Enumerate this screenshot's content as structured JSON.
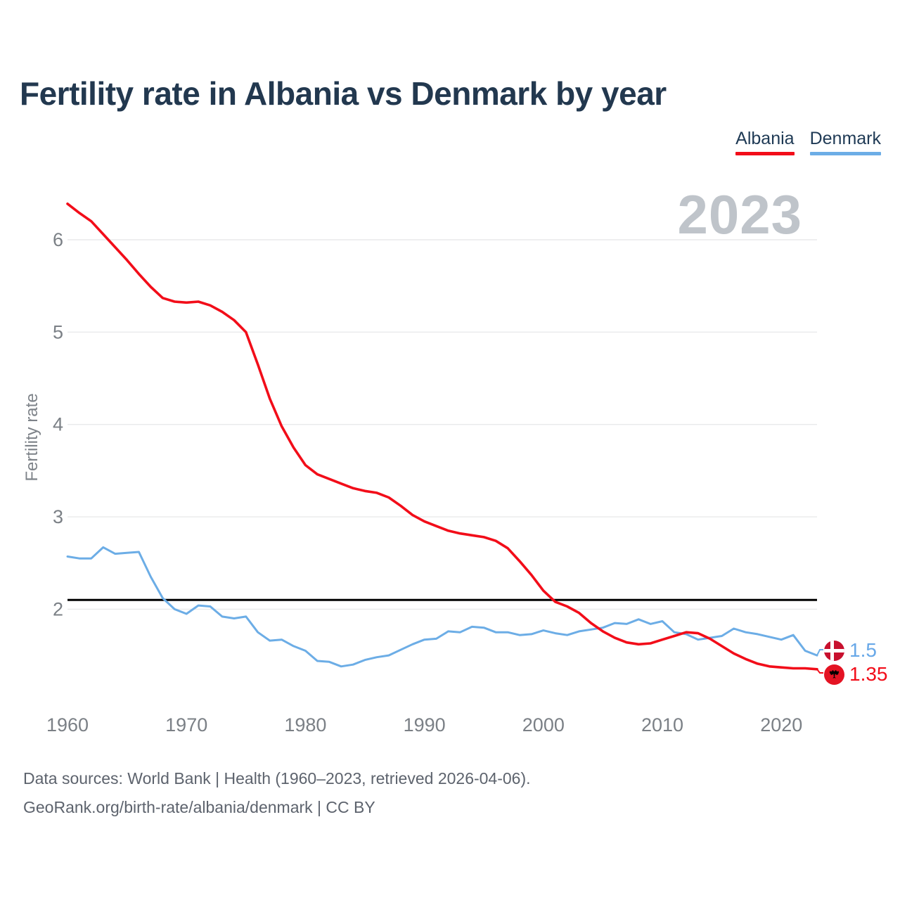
{
  "watermark": "2023",
  "chart_data": {
    "type": "line",
    "title": "Fertility rate in Albania vs Denmark by year",
    "xlabel": "",
    "ylabel": "Fertility rate",
    "x_start": 1960,
    "x_end": 2023,
    "x_tick_labels": [
      "1960",
      "1970",
      "1980",
      "1990",
      "2000",
      "2010",
      "2020"
    ],
    "y_tick_labels": [
      "2",
      "3",
      "4",
      "5",
      "6"
    ],
    "ylim": [
      1.25,
      6.55
    ],
    "grid": "horizontal",
    "legend_position": "top-right",
    "reference_line": {
      "value": 2.1,
      "color": "#000000"
    },
    "series": [
      {
        "name": "Albania",
        "color": "#f20d19",
        "end_label": "1.35",
        "flag": "albania-flag",
        "values": [
          6.39,
          6.29,
          6.2,
          6.06,
          5.92,
          5.78,
          5.63,
          5.49,
          5.37,
          5.33,
          5.32,
          5.33,
          5.29,
          5.22,
          5.13,
          5.0,
          4.65,
          4.28,
          3.98,
          3.75,
          3.56,
          3.46,
          3.41,
          3.36,
          3.31,
          3.28,
          3.26,
          3.21,
          3.12,
          3.02,
          2.95,
          2.9,
          2.85,
          2.82,
          2.8,
          2.78,
          2.74,
          2.66,
          2.52,
          2.37,
          2.2,
          2.08,
          2.03,
          1.96,
          1.85,
          1.76,
          1.69,
          1.64,
          1.62,
          1.63,
          1.67,
          1.71,
          1.75,
          1.74,
          1.68,
          1.6,
          1.52,
          1.46,
          1.41,
          1.38,
          1.37,
          1.36,
          1.36,
          1.35
        ]
      },
      {
        "name": "Denmark",
        "color": "#6cade6",
        "end_label": "1.5",
        "flag": "denmark-flag",
        "values": [
          2.57,
          2.55,
          2.55,
          2.67,
          2.6,
          2.61,
          2.62,
          2.35,
          2.12,
          2.0,
          1.95,
          2.04,
          2.03,
          1.92,
          1.9,
          1.92,
          1.75,
          1.66,
          1.67,
          1.6,
          1.55,
          1.44,
          1.43,
          1.38,
          1.4,
          1.45,
          1.48,
          1.5,
          1.56,
          1.62,
          1.67,
          1.68,
          1.76,
          1.75,
          1.81,
          1.8,
          1.75,
          1.75,
          1.72,
          1.73,
          1.77,
          1.74,
          1.72,
          1.76,
          1.78,
          1.8,
          1.85,
          1.84,
          1.89,
          1.84,
          1.87,
          1.75,
          1.73,
          1.67,
          1.69,
          1.71,
          1.79,
          1.75,
          1.73,
          1.7,
          1.67,
          1.72,
          1.55,
          1.5
        ]
      }
    ]
  },
  "colors": {
    "albania_red": "#f20d19",
    "denmark_blue": "#6cade6",
    "title_navy": "#22384f",
    "gridline": "#e9eaeb",
    "tick_label": "#7b8086",
    "watermark_gray": "#bfc4ca",
    "footer_gray": "#5d636d",
    "reference_black": "#000000"
  },
  "footer": {
    "line1": "Data sources: World Bank | Health (1960–2023, retrieved 2026-04-06).",
    "line2": "GeoRank.org/birth-rate/albania/denmark | CC BY"
  }
}
